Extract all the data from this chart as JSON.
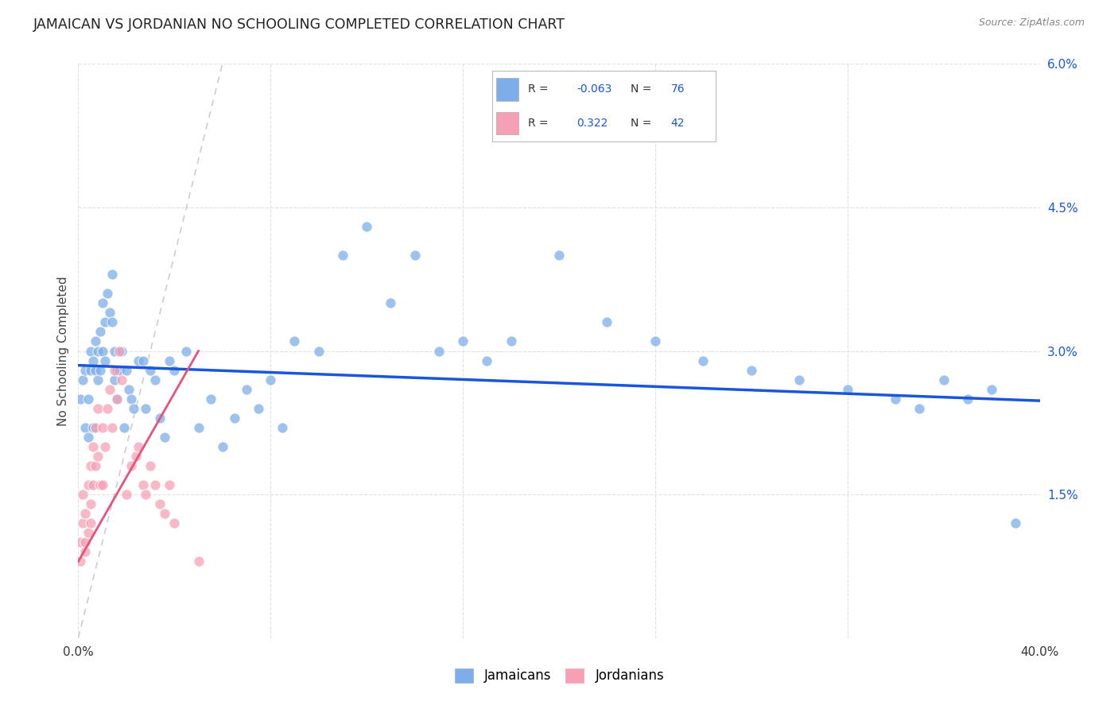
{
  "title": "JAMAICAN VS JORDANIAN NO SCHOOLING COMPLETED CORRELATION CHART",
  "source": "Source: ZipAtlas.com",
  "ylabel": "No Schooling Completed",
  "xlim": [
    0.0,
    0.4
  ],
  "ylim": [
    0.0,
    0.06
  ],
  "xtick_vals": [
    0.0,
    0.08,
    0.16,
    0.24,
    0.32,
    0.4
  ],
  "xtick_labels": [
    "0.0%",
    "",
    "",
    "",
    "",
    "40.0%"
  ],
  "yticks_right": [
    0.015,
    0.03,
    0.045,
    0.06
  ],
  "ytick_labels_right": [
    "1.5%",
    "3.0%",
    "4.5%",
    "6.0%"
  ],
  "r1": "-0.063",
  "n1": "76",
  "r2": "0.322",
  "n2": "42",
  "jamaican_color": "#7daee8",
  "jordanian_color": "#f5a0b5",
  "trend_blue": "#1a56db",
  "trend_pink": "#e8527a",
  "diagonal_color": "#c8c8c8",
  "background_color": "#ffffff",
  "grid_color": "#e0e0e0",
  "jamaican_x": [
    0.001,
    0.002,
    0.003,
    0.003,
    0.004,
    0.004,
    0.005,
    0.005,
    0.006,
    0.006,
    0.007,
    0.007,
    0.008,
    0.008,
    0.009,
    0.009,
    0.01,
    0.01,
    0.011,
    0.011,
    0.012,
    0.013,
    0.014,
    0.014,
    0.015,
    0.015,
    0.016,
    0.016,
    0.017,
    0.018,
    0.019,
    0.02,
    0.021,
    0.022,
    0.023,
    0.025,
    0.027,
    0.028,
    0.03,
    0.032,
    0.034,
    0.036,
    0.038,
    0.04,
    0.045,
    0.05,
    0.055,
    0.06,
    0.065,
    0.07,
    0.075,
    0.08,
    0.085,
    0.09,
    0.1,
    0.11,
    0.12,
    0.13,
    0.14,
    0.15,
    0.16,
    0.17,
    0.18,
    0.2,
    0.22,
    0.24,
    0.26,
    0.28,
    0.3,
    0.32,
    0.34,
    0.35,
    0.36,
    0.37,
    0.38,
    0.39
  ],
  "jamaican_y": [
    0.025,
    0.027,
    0.022,
    0.028,
    0.025,
    0.021,
    0.03,
    0.028,
    0.029,
    0.022,
    0.031,
    0.028,
    0.03,
    0.027,
    0.032,
    0.028,
    0.035,
    0.03,
    0.033,
    0.029,
    0.036,
    0.034,
    0.038,
    0.033,
    0.03,
    0.027,
    0.028,
    0.025,
    0.028,
    0.03,
    0.022,
    0.028,
    0.026,
    0.025,
    0.024,
    0.029,
    0.029,
    0.024,
    0.028,
    0.027,
    0.023,
    0.021,
    0.029,
    0.028,
    0.03,
    0.022,
    0.025,
    0.02,
    0.023,
    0.026,
    0.024,
    0.027,
    0.022,
    0.031,
    0.03,
    0.04,
    0.043,
    0.035,
    0.04,
    0.03,
    0.031,
    0.029,
    0.031,
    0.04,
    0.033,
    0.031,
    0.029,
    0.028,
    0.027,
    0.026,
    0.025,
    0.024,
    0.027,
    0.025,
    0.026,
    0.012
  ],
  "jordanian_x": [
    0.001,
    0.001,
    0.002,
    0.002,
    0.003,
    0.003,
    0.003,
    0.004,
    0.004,
    0.005,
    0.005,
    0.005,
    0.006,
    0.006,
    0.007,
    0.007,
    0.008,
    0.008,
    0.009,
    0.01,
    0.01,
    0.011,
    0.012,
    0.013,
    0.014,
    0.015,
    0.016,
    0.017,
    0.018,
    0.02,
    0.022,
    0.024,
    0.025,
    0.027,
    0.028,
    0.03,
    0.032,
    0.034,
    0.036,
    0.038,
    0.04,
    0.05
  ],
  "jordanian_y": [
    0.008,
    0.01,
    0.012,
    0.015,
    0.009,
    0.013,
    0.01,
    0.011,
    0.016,
    0.018,
    0.014,
    0.012,
    0.02,
    0.016,
    0.022,
    0.018,
    0.024,
    0.019,
    0.016,
    0.022,
    0.016,
    0.02,
    0.024,
    0.026,
    0.022,
    0.028,
    0.025,
    0.03,
    0.027,
    0.015,
    0.018,
    0.019,
    0.02,
    0.016,
    0.015,
    0.018,
    0.016,
    0.014,
    0.013,
    0.016,
    0.012,
    0.008
  ],
  "blue_trend_start_y": 0.0285,
  "blue_trend_end_y": 0.0248,
  "pink_trend_start_y": 0.008,
  "pink_trend_end_y": 0.03,
  "pink_trend_x_end": 0.05
}
